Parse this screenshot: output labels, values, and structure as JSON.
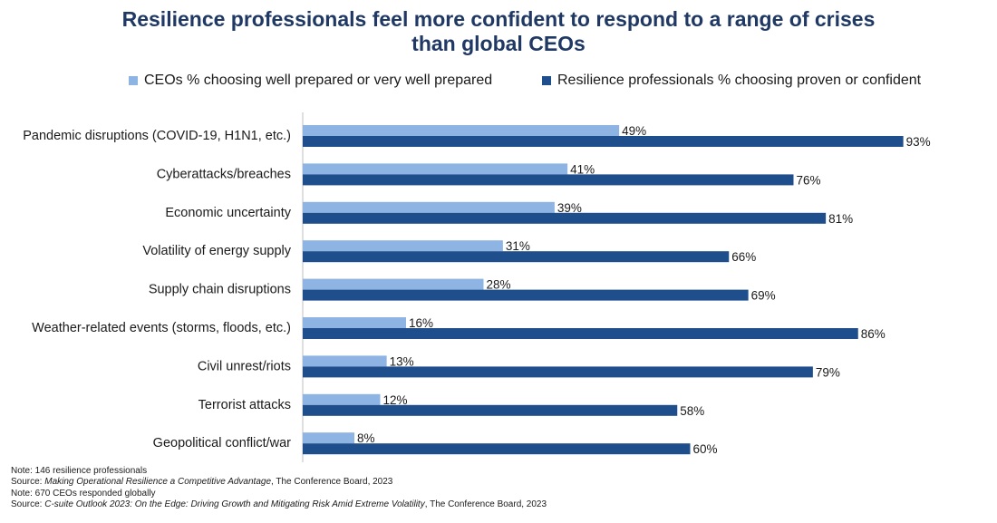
{
  "chart_data": {
    "type": "bar",
    "orientation": "horizontal",
    "title_line1": "Resilience professionals feel more confident to respond to a range of crises",
    "title_line2": "than global CEOs",
    "categories": [
      "Pandemic disruptions (COVID-19, H1N1, etc.)",
      "Cyberattacks/breaches",
      "Economic uncertainty",
      "Volatility of energy supply",
      "Supply chain disruptions",
      "Weather-related events (storms, floods, etc.)",
      "Civil unrest/riots",
      "Terrorist attacks",
      "Geopolitical conflict/war"
    ],
    "series": [
      {
        "name": "CEOs % choosing well prepared or very well prepared",
        "color": "#8db4e2",
        "values": [
          49,
          41,
          39,
          31,
          28,
          16,
          13,
          12,
          8
        ],
        "labels": [
          "49%",
          "41%",
          "39%",
          "31%",
          "28%",
          "16%",
          "13%",
          "12%",
          "8%"
        ]
      },
      {
        "name": "Resilience professionals % choosing proven or confident",
        "color": "#1f4e8c",
        "values": [
          93,
          76,
          81,
          66,
          69,
          86,
          79,
          58,
          60
        ],
        "labels": [
          "93%",
          "76%",
          "81%",
          "66%",
          "69%",
          "86%",
          "79%",
          "58%",
          "60%"
        ]
      }
    ],
    "xlim": [
      0,
      100
    ],
    "legend_position": "top",
    "grid": false
  },
  "notes": {
    "note1": "Note: 146 resilience professionals",
    "source1_prefix": "Source: ",
    "source1_italic": "Making Operational Resilience a Competitive Advantage",
    "source1_suffix": ", The Conference Board, 2023",
    "note2": "Note: 670 CEOs responded globally",
    "source2_prefix": "Source: ",
    "source2_italic": "C-suite Outlook 2023: On the Edge: Driving Growth and Mitigating Risk Amid Extreme Volatility",
    "source2_suffix": ", The Conference Board, 2023"
  }
}
